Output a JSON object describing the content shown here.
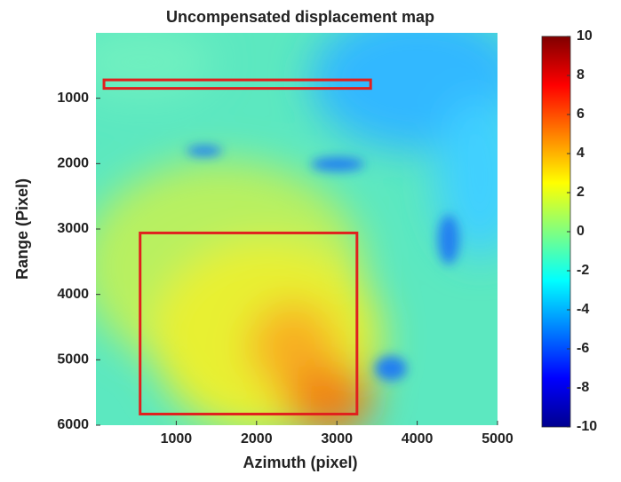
{
  "chart_data": {
    "type": "heatmap",
    "title": "Uncompensated displacement map",
    "x_label": "Azimuth (pixel)",
    "y_label": "Range (Pixel)",
    "xlim": [
      0,
      5000
    ],
    "xticks": [
      1000,
      2000,
      3000,
      4000,
      5000
    ],
    "ylim": [
      0,
      6000
    ],
    "yticks": [
      1000,
      2000,
      3000,
      4000,
      5000,
      6000
    ],
    "y_reversed": true,
    "colorbar": {
      "clim": [
        -10,
        10
      ],
      "ticks": [
        10,
        8,
        6,
        4,
        2,
        0,
        -2,
        -4,
        -6,
        -8,
        -10
      ],
      "colors": [
        "#00008f",
        "#0000ff",
        "#0080ff",
        "#00ffff",
        "#80ff80",
        "#ffff00",
        "#ff8000",
        "#ff0000",
        "#800000"
      ]
    },
    "regions": [
      {
        "x": [
          100,
          3420
        ],
        "y": [
          720,
          850
        ],
        "color": "#e0201e"
      },
      {
        "x": [
          550,
          3250
        ],
        "y": [
          3060,
          5830
        ],
        "color": "#e0201e"
      }
    ]
  }
}
